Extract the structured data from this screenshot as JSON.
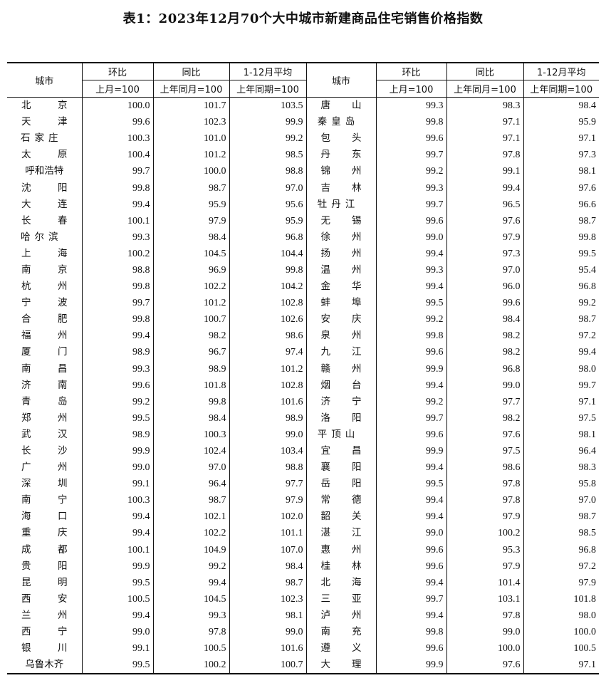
{
  "title": "表1：2023年12月70个大中城市新建商品住宅销售价格指数",
  "headers": {
    "city": "城市",
    "mom": "环比",
    "yoy": "同比",
    "avg": "1-12月平均",
    "mom_base": "上月=100",
    "yoy_base": "上年同月=100",
    "avg_base": "上年同期=100"
  },
  "rows": [
    [
      [
        "北京",
        "100.0",
        "101.7",
        "103.5"
      ],
      [
        "唐山",
        "99.3",
        "98.3",
        "98.4"
      ]
    ],
    [
      [
        "天津",
        "99.6",
        "102.3",
        "99.9"
      ],
      [
        "秦皇岛",
        "99.8",
        "97.1",
        "95.9"
      ]
    ],
    [
      [
        "石家庄",
        "100.3",
        "101.0",
        "99.2"
      ],
      [
        "包头",
        "99.6",
        "97.1",
        "97.1"
      ]
    ],
    [
      [
        "太原",
        "100.4",
        "101.2",
        "98.5"
      ],
      [
        "丹东",
        "99.7",
        "97.8",
        "97.3"
      ]
    ],
    [
      [
        "呼和浩特",
        "99.7",
        "100.0",
        "98.8"
      ],
      [
        "锦州",
        "99.2",
        "99.1",
        "98.1"
      ]
    ],
    [
      [
        "沈阳",
        "99.8",
        "98.7",
        "97.0"
      ],
      [
        "吉林",
        "99.3",
        "99.4",
        "97.6"
      ]
    ],
    [
      [
        "大连",
        "99.4",
        "95.9",
        "95.6"
      ],
      [
        "牡丹江",
        "99.7",
        "96.5",
        "96.6"
      ]
    ],
    [
      [
        "长春",
        "100.1",
        "97.9",
        "95.9"
      ],
      [
        "无锡",
        "99.6",
        "97.6",
        "98.7"
      ]
    ],
    [
      [
        "哈尔滨",
        "99.3",
        "98.4",
        "96.8"
      ],
      [
        "徐州",
        "99.0",
        "97.9",
        "99.8"
      ]
    ],
    [
      [
        "上海",
        "100.2",
        "104.5",
        "104.4"
      ],
      [
        "扬州",
        "99.4",
        "97.3",
        "99.5"
      ]
    ],
    [
      [
        "南京",
        "98.8",
        "96.9",
        "99.8"
      ],
      [
        "温州",
        "99.3",
        "97.0",
        "95.4"
      ]
    ],
    [
      [
        "杭州",
        "99.8",
        "102.2",
        "104.2"
      ],
      [
        "金华",
        "99.4",
        "96.0",
        "96.8"
      ]
    ],
    [
      [
        "宁波",
        "99.7",
        "101.2",
        "102.8"
      ],
      [
        "蚌埠",
        "99.5",
        "99.6",
        "99.2"
      ]
    ],
    [
      [
        "合肥",
        "99.8",
        "100.7",
        "102.6"
      ],
      [
        "安庆",
        "99.2",
        "98.4",
        "98.7"
      ]
    ],
    [
      [
        "福州",
        "99.4",
        "98.2",
        "98.6"
      ],
      [
        "泉州",
        "99.8",
        "98.2",
        "97.2"
      ]
    ],
    [
      [
        "厦门",
        "98.9",
        "96.7",
        "97.4"
      ],
      [
        "九江",
        "99.6",
        "98.2",
        "99.4"
      ]
    ],
    [
      [
        "南昌",
        "99.3",
        "98.9",
        "101.2"
      ],
      [
        "赣州",
        "99.9",
        "96.8",
        "98.0"
      ]
    ],
    [
      [
        "济南",
        "99.6",
        "101.8",
        "102.8"
      ],
      [
        "烟台",
        "99.4",
        "99.0",
        "99.7"
      ]
    ],
    [
      [
        "青岛",
        "99.2",
        "99.8",
        "101.6"
      ],
      [
        "济宁",
        "99.2",
        "97.7",
        "97.1"
      ]
    ],
    [
      [
        "郑州",
        "99.5",
        "98.4",
        "98.9"
      ],
      [
        "洛阳",
        "99.7",
        "98.2",
        "97.5"
      ]
    ],
    [
      [
        "武汉",
        "98.9",
        "100.3",
        "99.0"
      ],
      [
        "平顶山",
        "99.6",
        "97.6",
        "98.1"
      ]
    ],
    [
      [
        "长沙",
        "99.9",
        "102.4",
        "103.4"
      ],
      [
        "宜昌",
        "99.9",
        "97.5",
        "96.4"
      ]
    ],
    [
      [
        "广州",
        "99.0",
        "97.0",
        "98.8"
      ],
      [
        "襄阳",
        "99.4",
        "98.6",
        "98.3"
      ]
    ],
    [
      [
        "深圳",
        "99.1",
        "96.4",
        "97.7"
      ],
      [
        "岳阳",
        "99.5",
        "97.8",
        "95.8"
      ]
    ],
    [
      [
        "南宁",
        "100.3",
        "98.7",
        "97.9"
      ],
      [
        "常德",
        "99.4",
        "97.8",
        "97.0"
      ]
    ],
    [
      [
        "海口",
        "99.4",
        "102.1",
        "102.0"
      ],
      [
        "韶关",
        "99.4",
        "97.9",
        "98.7"
      ]
    ],
    [
      [
        "重庆",
        "99.4",
        "102.2",
        "101.1"
      ],
      [
        "湛江",
        "99.0",
        "100.2",
        "98.5"
      ]
    ],
    [
      [
        "成都",
        "100.1",
        "104.9",
        "107.0"
      ],
      [
        "惠州",
        "99.6",
        "95.3",
        "96.8"
      ]
    ],
    [
      [
        "贵阳",
        "99.9",
        "99.2",
        "98.4"
      ],
      [
        "桂林",
        "99.6",
        "97.9",
        "97.2"
      ]
    ],
    [
      [
        "昆明",
        "99.5",
        "99.4",
        "98.7"
      ],
      [
        "北海",
        "99.4",
        "101.4",
        "97.9"
      ]
    ],
    [
      [
        "西安",
        "100.5",
        "104.5",
        "102.3"
      ],
      [
        "三亚",
        "99.7",
        "103.1",
        "101.8"
      ]
    ],
    [
      [
        "兰州",
        "99.4",
        "99.3",
        "98.1"
      ],
      [
        "泸州",
        "99.4",
        "97.8",
        "98.0"
      ]
    ],
    [
      [
        "西宁",
        "99.0",
        "97.8",
        "99.0"
      ],
      [
        "南充",
        "99.8",
        "99.0",
        "100.0"
      ]
    ],
    [
      [
        "银川",
        "99.1",
        "100.5",
        "101.6"
      ],
      [
        "遵义",
        "99.6",
        "100.0",
        "100.5"
      ]
    ],
    [
      [
        "乌鲁木齐",
        "99.5",
        "100.2",
        "100.7"
      ],
      [
        "大理",
        "99.9",
        "97.6",
        "97.1"
      ]
    ]
  ]
}
